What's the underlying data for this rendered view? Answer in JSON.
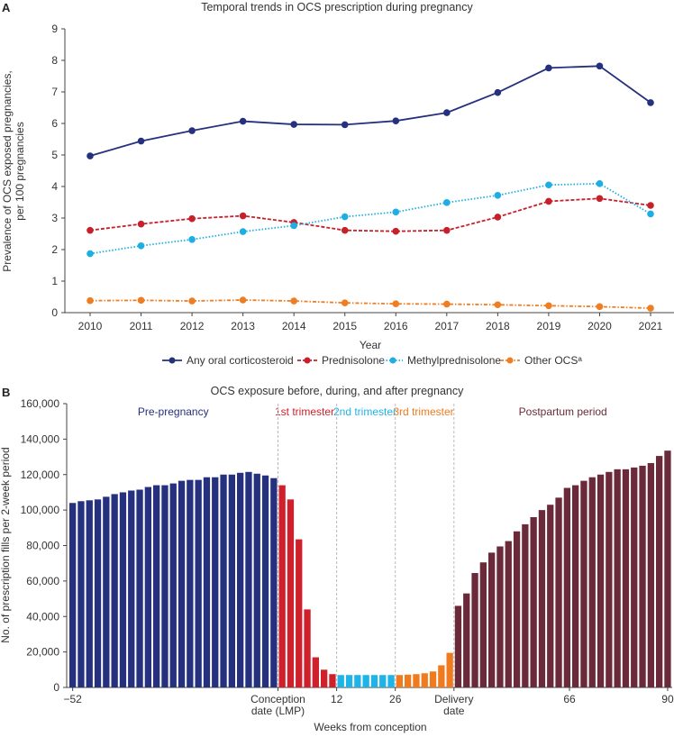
{
  "chart_data": [
    {
      "panel": "A",
      "type": "line",
      "title": "Temporal trends in OCS prescription during pregnancy",
      "xlabel": "Year",
      "ylabel": [
        "Prevalence of OCS exposed pregnancies,",
        "per 100 pregnancies"
      ],
      "ylim": [
        0,
        9
      ],
      "yticks": [
        "0",
        "1",
        "2",
        "3",
        "4",
        "5",
        "6",
        "7",
        "8",
        "9"
      ],
      "categories": [
        "2010",
        "2011",
        "2012",
        "2013",
        "2014",
        "2015",
        "2016",
        "2017",
        "2018",
        "2019",
        "2020",
        "2021"
      ],
      "legend_position": "bottom",
      "grid": false,
      "series": [
        {
          "name": "Any oral corticosteroid",
          "color": "#25307f",
          "dash": "solid",
          "values": [
            4.97,
            5.44,
            5.77,
            6.07,
            5.97,
            5.96,
            6.08,
            6.34,
            6.98,
            7.76,
            7.82,
            6.66
          ]
        },
        {
          "name": "Prednisolone",
          "color": "#c8202b",
          "dash": "dashed",
          "values": [
            2.61,
            2.81,
            2.98,
            3.07,
            2.86,
            2.61,
            2.58,
            2.61,
            3.03,
            3.53,
            3.62,
            3.4
          ]
        },
        {
          "name": "Methylprednisolone",
          "color": "#1eaee3",
          "dash": "dotted",
          "values": [
            1.87,
            2.12,
            2.32,
            2.57,
            2.76,
            3.04,
            3.19,
            3.49,
            3.72,
            4.05,
            4.09,
            3.13
          ]
        },
        {
          "name": "Other OCSᵃ",
          "color": "#ef7d22",
          "dash": "dashdot",
          "values": [
            0.38,
            0.39,
            0.37,
            0.4,
            0.37,
            0.31,
            0.28,
            0.27,
            0.25,
            0.22,
            0.19,
            0.14
          ]
        }
      ]
    },
    {
      "panel": "B",
      "type": "bar",
      "title": "OCS exposure before, during, and after pregnancy",
      "xlabel": "Weeks from conception",
      "ylabel": "No. of prescription fills per 2-week period",
      "ylim": [
        0,
        160000
      ],
      "yticks": [
        "0",
        "20,000",
        "40,000",
        "60,000",
        "80,000",
        "100,000",
        "120,000",
        "140,000",
        "160,000"
      ],
      "xticks": [
        "−52",
        "Conception\ndate (LMP)",
        "12",
        "26",
        "Delivery\ndate",
        "66",
        "90"
      ],
      "grid": false,
      "periods": [
        {
          "name": "Pre-pregnancy",
          "color": "#25307f",
          "values": [
            104000,
            105000,
            105500,
            106000,
            107500,
            109000,
            110000,
            111000,
            111500,
            113000,
            114000,
            114000,
            115000,
            116500,
            117000,
            117000,
            118500,
            118500,
            120000,
            120000,
            121000,
            121500,
            120500,
            119500,
            118000
          ]
        },
        {
          "name": "1st trimester",
          "color": "#d0202b",
          "values": [
            114000,
            106000,
            83500,
            44000,
            17000,
            10000,
            7500
          ]
        },
        {
          "name": "2nd trimester",
          "color": "#1eb4e8",
          "values": [
            7000,
            7000,
            7000,
            7000,
            7000,
            7000,
            7000
          ]
        },
        {
          "name": "3rd trimester",
          "color": "#f07a1e",
          "values": [
            7000,
            7200,
            7500,
            8000,
            9000,
            12500,
            19500
          ]
        },
        {
          "name": "Postpartum period",
          "color": "#6b2a3a",
          "values": [
            46000,
            53000,
            64500,
            70500,
            76000,
            79500,
            82500,
            88000,
            92000,
            96000,
            100000,
            103000,
            107000,
            112500,
            114000,
            116500,
            118500,
            120000,
            121500,
            123000,
            123000,
            124000,
            125000,
            126500,
            130500,
            133500
          ]
        }
      ]
    }
  ],
  "panel_labels": [
    "A",
    "B"
  ]
}
